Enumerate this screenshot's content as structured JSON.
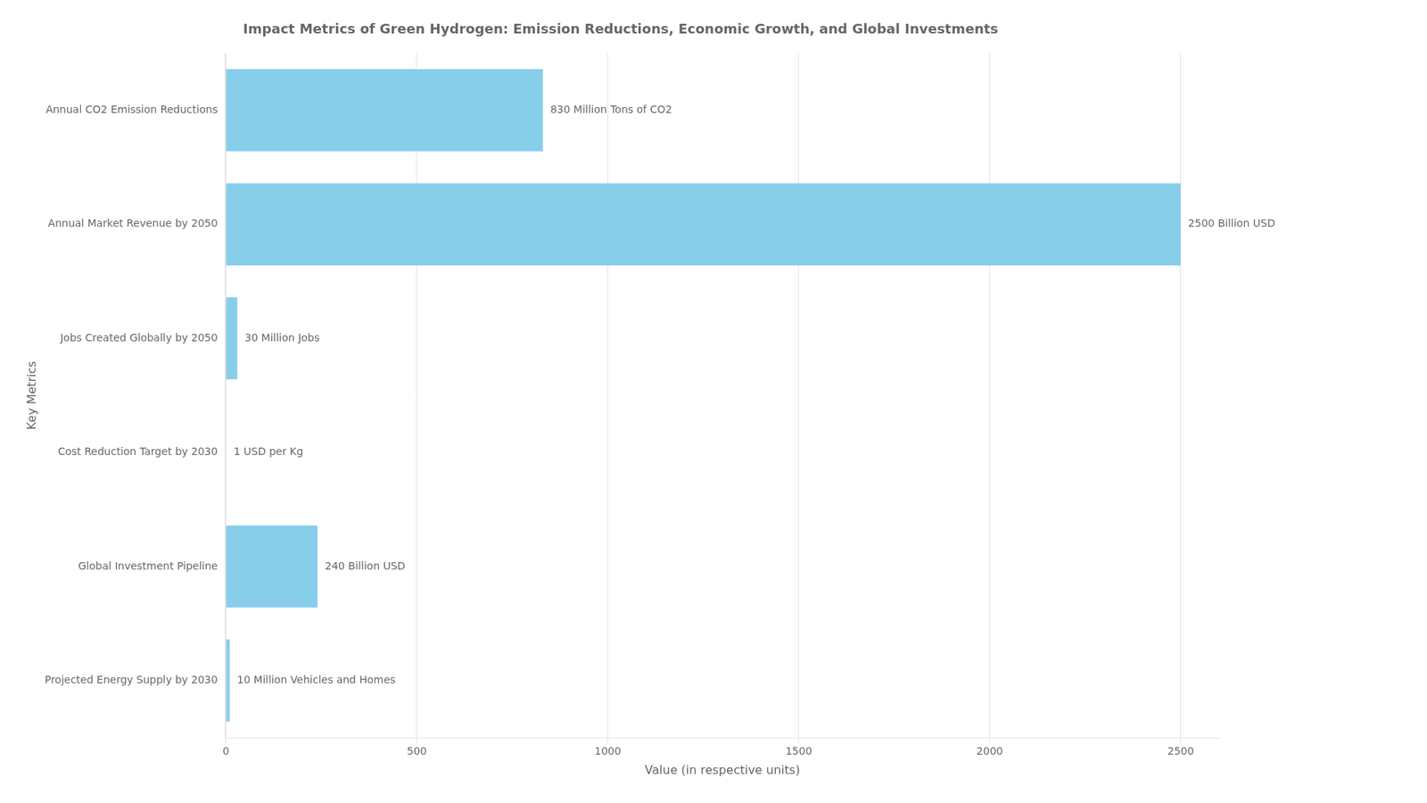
{
  "chart_data": {
    "type": "bar",
    "orientation": "horizontal",
    "title": "Impact Metrics of Green Hydrogen: Emission Reductions, Economic Growth, and Global Investments",
    "xlabel": "Value (in respective units)",
    "ylabel": "Key Metrics",
    "categories": [
      "Annual CO2 Emission Reductions",
      "Annual Market Revenue by 2050",
      "Jobs Created Globally by 2050",
      "Cost Reduction Target by 2030",
      "Global Investment Pipeline",
      "Projected Energy Supply by 2030"
    ],
    "values": [
      830,
      2500,
      30,
      1,
      240,
      10
    ],
    "annotations": [
      "830 Million Tons of CO2",
      "2500 Billion USD",
      "30 Million Jobs",
      "1 USD per Kg",
      "240 Billion USD",
      "10 Million Vehicles and Homes"
    ],
    "color": "#87CEEB",
    "xlim": [
      0,
      2600
    ],
    "xticks": [
      0,
      500,
      1000,
      1500,
      2000,
      2500
    ],
    "grid": true
  }
}
